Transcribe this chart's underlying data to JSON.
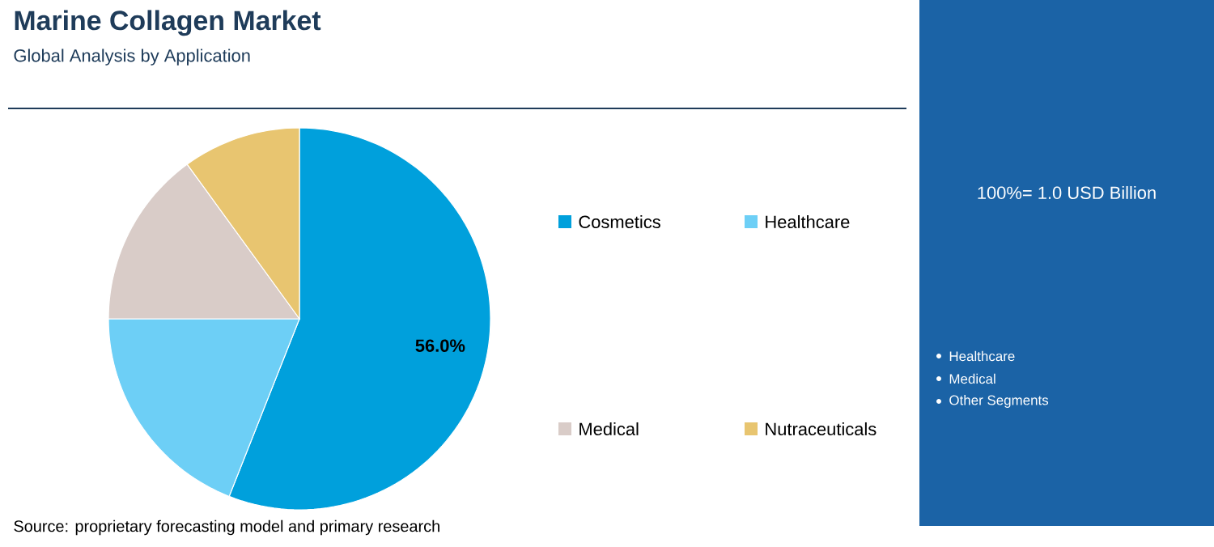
{
  "chart_data": {
    "type": "pie",
    "title": "Marine Collagen Market",
    "subtitle": "Global Analysis by Application",
    "categories": [
      "Cosmetics",
      "Healthcare",
      "Medical",
      "Nutraceuticals"
    ],
    "values": [
      56.0,
      19.0,
      15.0,
      10.0
    ],
    "colors": [
      "#00a0dc",
      "#6dcff6",
      "#d9ccc8",
      "#e8c570"
    ],
    "value_labels": [
      "56.0%",
      null,
      null,
      null
    ],
    "legend": "right",
    "annotations": [
      "100%= 1.0 USD Billion",
      "Healthcare",
      "Medical",
      "Other Segments",
      "Source: proprietary forecasting model and primary research"
    ]
  }
}
